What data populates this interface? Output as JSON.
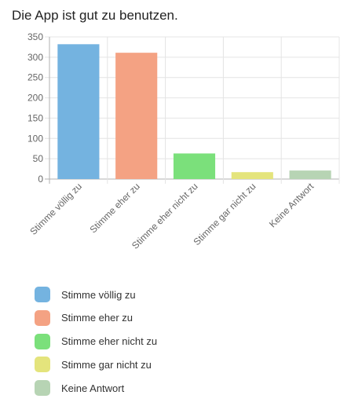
{
  "title": "Die App ist gut zu benutzen.",
  "chart_data": {
    "type": "bar",
    "title": "Die App ist gut zu benutzen.",
    "categories": [
      "Stimme völlig zu",
      "Stimme eher zu",
      "Stimme eher nicht zu",
      "Stimme gar nicht zu",
      "Keine Antwort"
    ],
    "values": [
      332,
      311,
      63,
      17,
      21
    ],
    "colors": [
      "#74b3e0",
      "#f4a283",
      "#7be07b",
      "#e4e47c",
      "#b7d4b4"
    ],
    "ylim": [
      0,
      350
    ],
    "yticks": [
      0,
      50,
      100,
      150,
      200,
      250,
      300,
      350
    ],
    "xlabel": "",
    "ylabel": "",
    "grid": true,
    "legend_position": "bottom"
  }
}
